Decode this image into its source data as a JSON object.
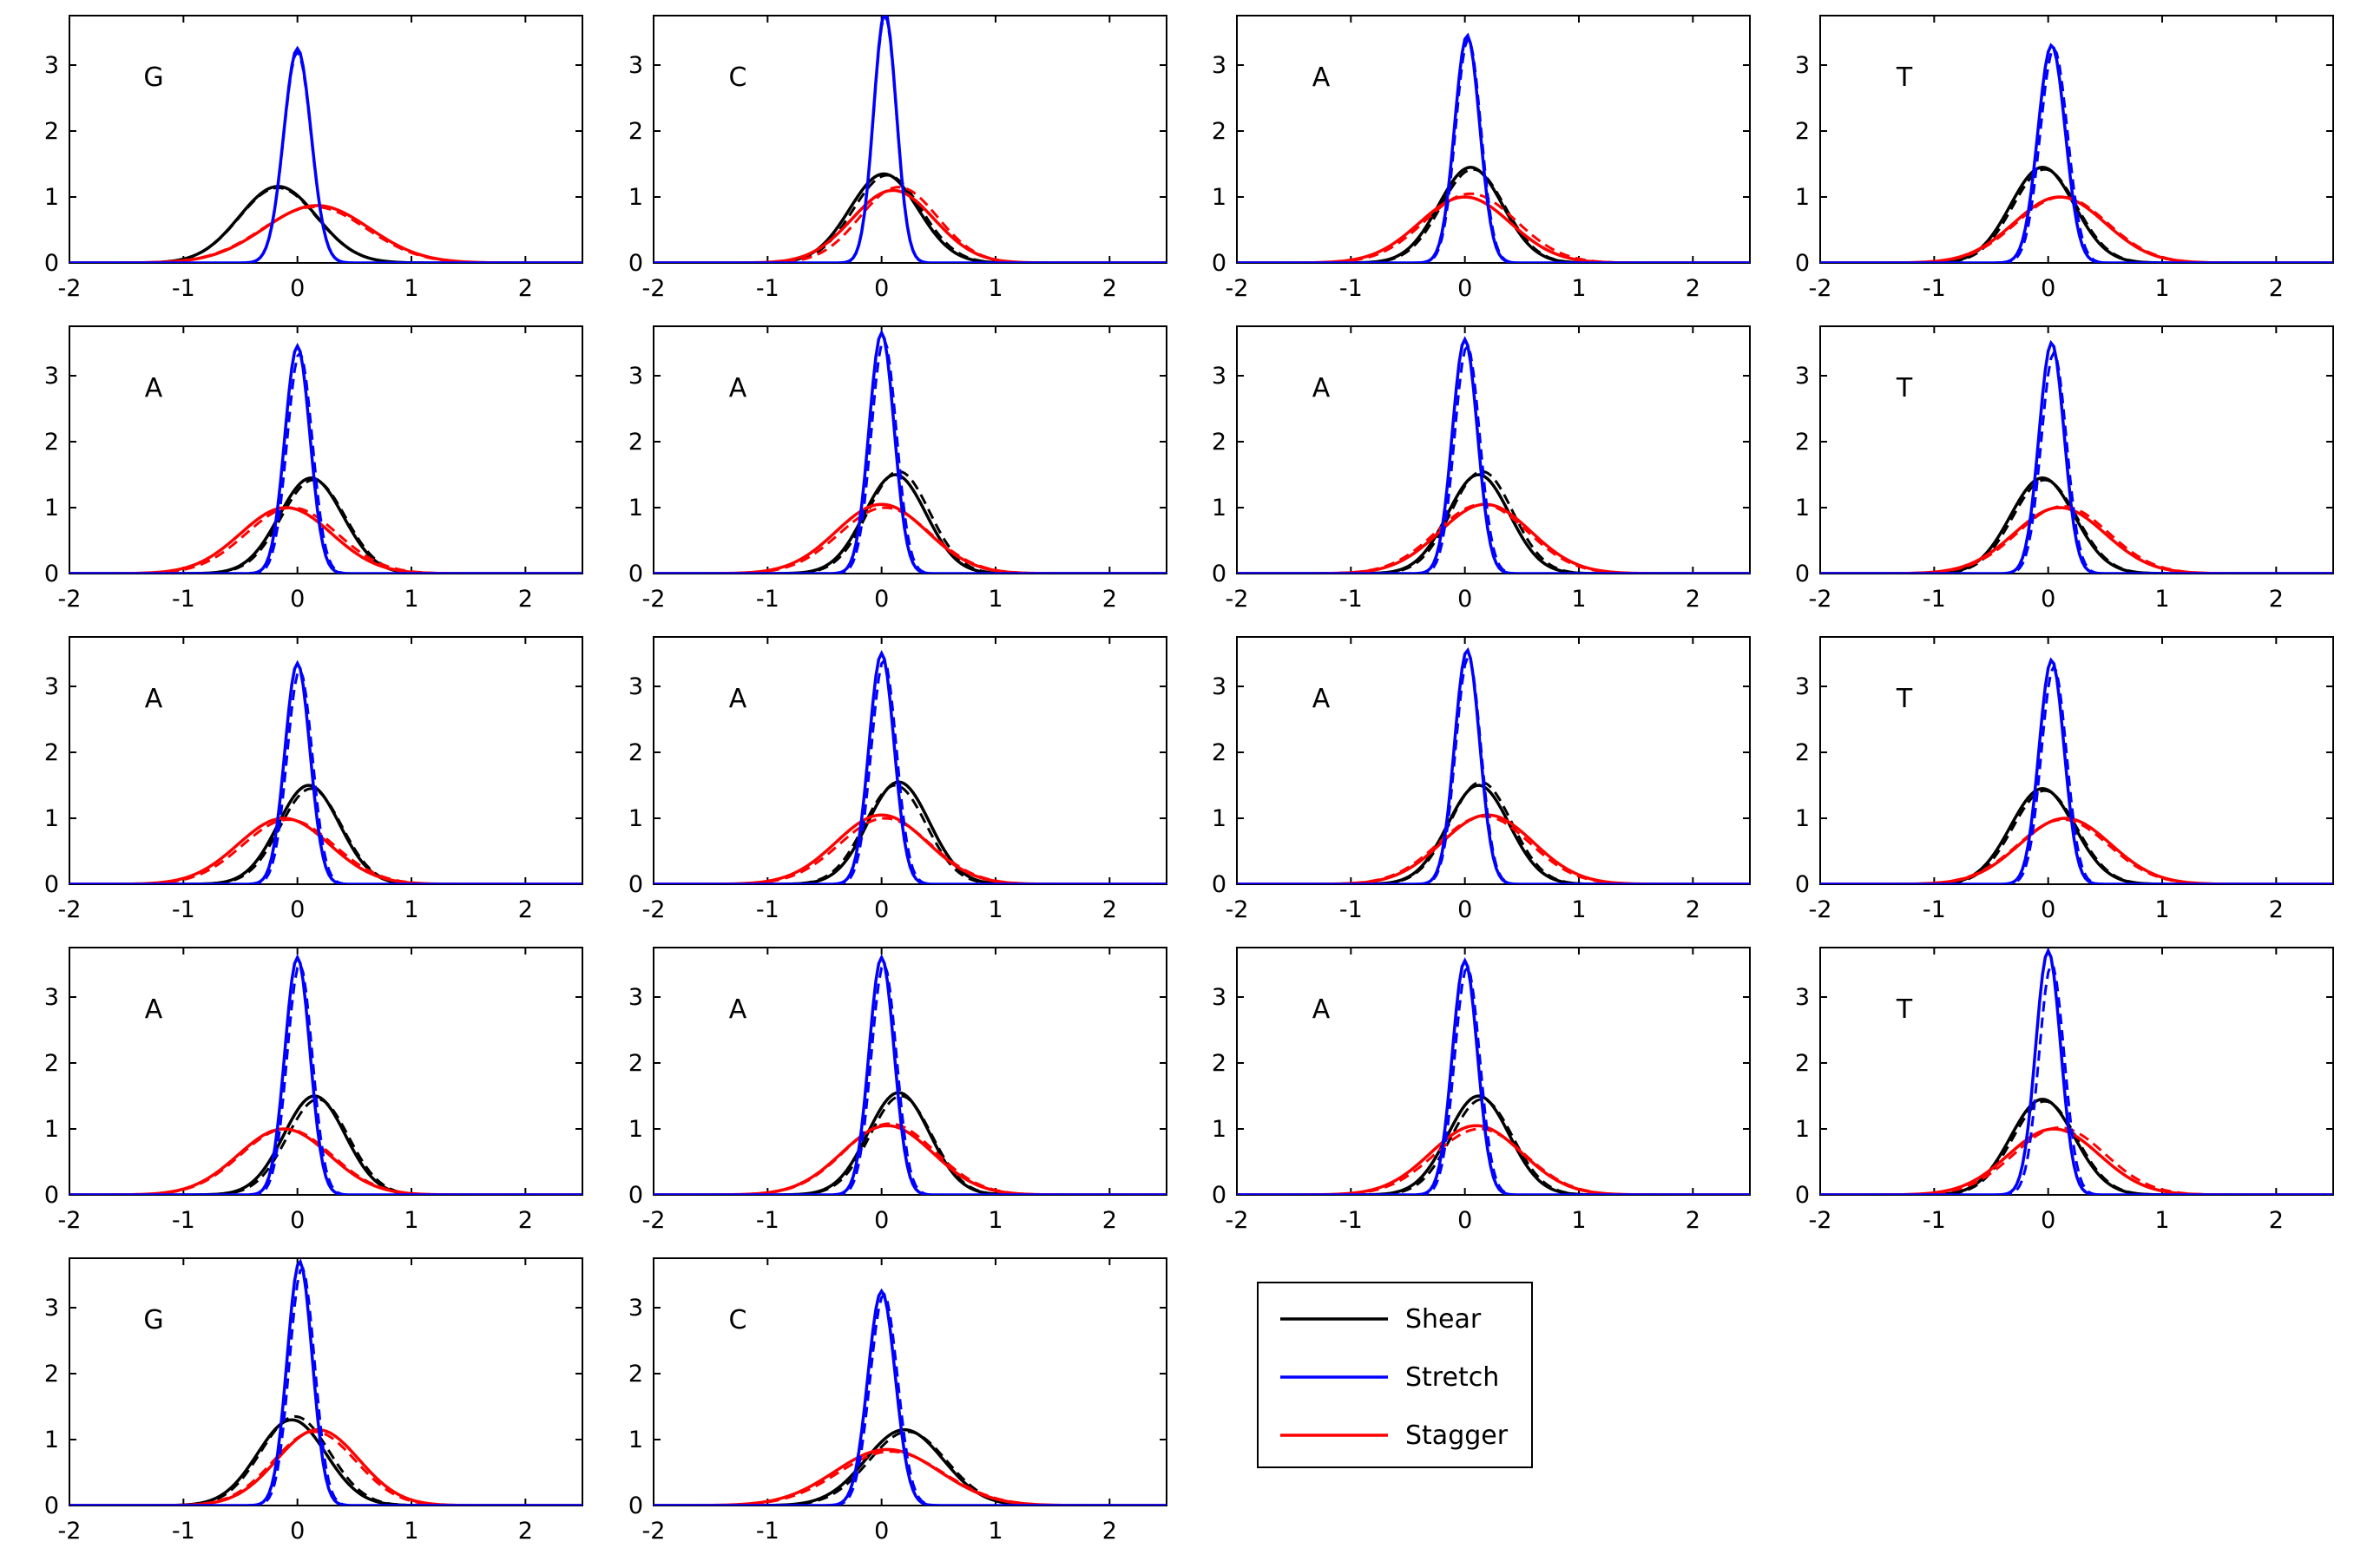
{
  "chart_data": {
    "type": "line",
    "layout": "small-multiples 5 rows x 4 columns",
    "x_axis": {
      "range": [
        -2,
        2.5
      ],
      "ticks": [
        -2,
        -1,
        0,
        1,
        2
      ],
      "tick_labels": [
        "-2",
        "-1",
        "0",
        "1",
        "2"
      ]
    },
    "y_axis": {
      "range": [
        0,
        3.75
      ],
      "ticks": [
        0,
        1,
        2,
        3
      ],
      "tick_labels": [
        "0",
        "1",
        "2",
        "3"
      ]
    },
    "title": "",
    "xlabel": "",
    "ylabel": "",
    "grid": false,
    "line_styles": [
      "solid",
      "dashed"
    ],
    "legend": {
      "placement": "panel 19 position (row 5, column 3)",
      "entries": [
        {
          "label": "Shear",
          "color": "#000000"
        },
        {
          "label": "Stretch",
          "color": "#0000ff"
        },
        {
          "label": "Stagger",
          "color": "#ff0000"
        }
      ]
    },
    "panels": [
      {
        "label": "G",
        "row": 1,
        "col": 1,
        "series": {
          "Shear": {
            "solid": {
              "mu": -0.17,
              "sigma": 0.34,
              "peak": 1.16
            },
            "dashed": {
              "mu": -0.17,
              "sigma": 0.34,
              "peak": 1.14
            }
          },
          "Stretch": {
            "solid": {
              "mu": 0.0,
              "sigma": 0.12,
              "peak": 3.25
            },
            "dashed": {
              "mu": 0.0,
              "sigma": 0.12,
              "peak": 3.2
            }
          },
          "Stagger": {
            "solid": {
              "mu": 0.17,
              "sigma": 0.46,
              "peak": 0.87
            },
            "dashed": {
              "mu": 0.15,
              "sigma": 0.46,
              "peak": 0.85
            }
          }
        }
      },
      {
        "label": "C",
        "row": 1,
        "col": 2,
        "series": {
          "Shear": {
            "solid": {
              "mu": 0.02,
              "sigma": 0.3,
              "peak": 1.35
            },
            "dashed": {
              "mu": 0.05,
              "sigma": 0.3,
              "peak": 1.33
            }
          },
          "Stretch": {
            "solid": {
              "mu": 0.03,
              "sigma": 0.1,
              "peak": 3.8
            },
            "dashed": {
              "mu": 0.03,
              "sigma": 0.1,
              "peak": 3.75
            }
          },
          "Stagger": {
            "solid": {
              "mu": 0.1,
              "sigma": 0.36,
              "peak": 1.1
            },
            "dashed": {
              "mu": 0.15,
              "sigma": 0.34,
              "peak": 1.15
            }
          }
        }
      },
      {
        "label": "A",
        "row": 1,
        "col": 3,
        "series": {
          "Shear": {
            "solid": {
              "mu": 0.05,
              "sigma": 0.28,
              "peak": 1.45
            },
            "dashed": {
              "mu": 0.07,
              "sigma": 0.28,
              "peak": 1.42
            }
          },
          "Stretch": {
            "solid": {
              "mu": 0.02,
              "sigma": 0.11,
              "peak": 3.45
            },
            "dashed": {
              "mu": 0.03,
              "sigma": 0.11,
              "peak": 3.4
            }
          },
          "Stagger": {
            "solid": {
              "mu": 0.0,
              "sigma": 0.4,
              "peak": 1.0
            },
            "dashed": {
              "mu": 0.05,
              "sigma": 0.4,
              "peak": 1.05
            }
          }
        }
      },
      {
        "label": "T",
        "row": 1,
        "col": 4,
        "series": {
          "Shear": {
            "solid": {
              "mu": -0.05,
              "sigma": 0.28,
              "peak": 1.45
            },
            "dashed": {
              "mu": -0.03,
              "sigma": 0.28,
              "peak": 1.42
            }
          },
          "Stretch": {
            "solid": {
              "mu": 0.03,
              "sigma": 0.12,
              "peak": 3.3
            },
            "dashed": {
              "mu": 0.05,
              "sigma": 0.12,
              "peak": 3.25
            }
          },
          "Stagger": {
            "solid": {
              "mu": 0.1,
              "sigma": 0.4,
              "peak": 1.0
            },
            "dashed": {
              "mu": 0.12,
              "sigma": 0.4,
              "peak": 1.0
            }
          }
        }
      },
      {
        "label": "A",
        "row": 2,
        "col": 1,
        "series": {
          "Shear": {
            "solid": {
              "mu": 0.12,
              "sigma": 0.28,
              "peak": 1.45
            },
            "dashed": {
              "mu": 0.14,
              "sigma": 0.28,
              "peak": 1.42
            }
          },
          "Stretch": {
            "solid": {
              "mu": 0.0,
              "sigma": 0.11,
              "peak": 3.45
            },
            "dashed": {
              "mu": 0.02,
              "sigma": 0.11,
              "peak": 3.35
            }
          },
          "Stagger": {
            "solid": {
              "mu": -0.1,
              "sigma": 0.4,
              "peak": 1.0
            },
            "dashed": {
              "mu": -0.05,
              "sigma": 0.4,
              "peak": 1.0
            }
          }
        }
      },
      {
        "label": "A",
        "row": 2,
        "col": 2,
        "series": {
          "Shear": {
            "solid": {
              "mu": 0.12,
              "sigma": 0.27,
              "peak": 1.5
            },
            "dashed": {
              "mu": 0.15,
              "sigma": 0.27,
              "peak": 1.55
            }
          },
          "Stretch": {
            "solid": {
              "mu": 0.0,
              "sigma": 0.11,
              "peak": 3.65
            },
            "dashed": {
              "mu": 0.02,
              "sigma": 0.11,
              "peak": 3.55
            }
          },
          "Stagger": {
            "solid": {
              "mu": 0.0,
              "sigma": 0.4,
              "peak": 1.05
            },
            "dashed": {
              "mu": 0.03,
              "sigma": 0.4,
              "peak": 1.0
            }
          }
        }
      },
      {
        "label": "A",
        "row": 2,
        "col": 3,
        "series": {
          "Shear": {
            "solid": {
              "mu": 0.12,
              "sigma": 0.27,
              "peak": 1.5
            },
            "dashed": {
              "mu": 0.15,
              "sigma": 0.27,
              "peak": 1.55
            }
          },
          "Stretch": {
            "solid": {
              "mu": 0.0,
              "sigma": 0.11,
              "peak": 3.55
            },
            "dashed": {
              "mu": 0.02,
              "sigma": 0.11,
              "peak": 3.45
            }
          },
          "Stagger": {
            "solid": {
              "mu": 0.18,
              "sigma": 0.4,
              "peak": 1.05
            },
            "dashed": {
              "mu": 0.15,
              "sigma": 0.4,
              "peak": 1.05
            }
          }
        }
      },
      {
        "label": "T",
        "row": 2,
        "col": 4,
        "series": {
          "Shear": {
            "solid": {
              "mu": -0.05,
              "sigma": 0.28,
              "peak": 1.45
            },
            "dashed": {
              "mu": -0.03,
              "sigma": 0.28,
              "peak": 1.42
            }
          },
          "Stretch": {
            "solid": {
              "mu": 0.03,
              "sigma": 0.11,
              "peak": 3.5
            },
            "dashed": {
              "mu": 0.05,
              "sigma": 0.11,
              "peak": 3.35
            }
          },
          "Stagger": {
            "solid": {
              "mu": 0.1,
              "sigma": 0.4,
              "peak": 1.0
            },
            "dashed": {
              "mu": 0.13,
              "sigma": 0.4,
              "peak": 1.02
            }
          }
        }
      },
      {
        "label": "A",
        "row": 3,
        "col": 1,
        "series": {
          "Shear": {
            "solid": {
              "mu": 0.1,
              "sigma": 0.27,
              "peak": 1.5
            },
            "dashed": {
              "mu": 0.12,
              "sigma": 0.27,
              "peak": 1.45
            }
          },
          "Stretch": {
            "solid": {
              "mu": 0.0,
              "sigma": 0.11,
              "peak": 3.35
            },
            "dashed": {
              "mu": 0.02,
              "sigma": 0.11,
              "peak": 3.25
            }
          },
          "Stagger": {
            "solid": {
              "mu": -0.12,
              "sigma": 0.4,
              "peak": 1.0
            },
            "dashed": {
              "mu": -0.08,
              "sigma": 0.4,
              "peak": 0.98
            }
          }
        }
      },
      {
        "label": "A",
        "row": 3,
        "col": 2,
        "series": {
          "Shear": {
            "solid": {
              "mu": 0.15,
              "sigma": 0.27,
              "peak": 1.55
            },
            "dashed": {
              "mu": 0.12,
              "sigma": 0.27,
              "peak": 1.5
            }
          },
          "Stretch": {
            "solid": {
              "mu": 0.0,
              "sigma": 0.11,
              "peak": 3.5
            },
            "dashed": {
              "mu": 0.02,
              "sigma": 0.11,
              "peak": 3.4
            }
          },
          "Stagger": {
            "solid": {
              "mu": 0.0,
              "sigma": 0.4,
              "peak": 1.05
            },
            "dashed": {
              "mu": 0.03,
              "sigma": 0.4,
              "peak": 1.0
            }
          }
        }
      },
      {
        "label": "A",
        "row": 3,
        "col": 3,
        "series": {
          "Shear": {
            "solid": {
              "mu": 0.12,
              "sigma": 0.27,
              "peak": 1.5
            },
            "dashed": {
              "mu": 0.14,
              "sigma": 0.27,
              "peak": 1.55
            }
          },
          "Stretch": {
            "solid": {
              "mu": 0.02,
              "sigma": 0.11,
              "peak": 3.55
            },
            "dashed": {
              "mu": 0.03,
              "sigma": 0.11,
              "peak": 3.45
            }
          },
          "Stagger": {
            "solid": {
              "mu": 0.2,
              "sigma": 0.4,
              "peak": 1.05
            },
            "dashed": {
              "mu": 0.17,
              "sigma": 0.4,
              "peak": 1.03
            }
          }
        }
      },
      {
        "label": "T",
        "row": 3,
        "col": 4,
        "series": {
          "Shear": {
            "solid": {
              "mu": -0.05,
              "sigma": 0.28,
              "peak": 1.45
            },
            "dashed": {
              "mu": -0.03,
              "sigma": 0.28,
              "peak": 1.42
            }
          },
          "Stretch": {
            "solid": {
              "mu": 0.03,
              "sigma": 0.11,
              "peak": 3.4
            },
            "dashed": {
              "mu": 0.05,
              "sigma": 0.11,
              "peak": 3.3
            }
          },
          "Stagger": {
            "solid": {
              "mu": 0.15,
              "sigma": 0.4,
              "peak": 1.0
            },
            "dashed": {
              "mu": 0.13,
              "sigma": 0.4,
              "peak": 0.98
            }
          }
        }
      },
      {
        "label": "A",
        "row": 4,
        "col": 1,
        "series": {
          "Shear": {
            "solid": {
              "mu": 0.15,
              "sigma": 0.27,
              "peak": 1.5
            },
            "dashed": {
              "mu": 0.18,
              "sigma": 0.27,
              "peak": 1.45
            }
          },
          "Stretch": {
            "solid": {
              "mu": 0.0,
              "sigma": 0.11,
              "peak": 3.6
            },
            "dashed": {
              "mu": 0.02,
              "sigma": 0.11,
              "peak": 3.5
            }
          },
          "Stagger": {
            "solid": {
              "mu": -0.12,
              "sigma": 0.4,
              "peak": 1.0
            },
            "dashed": {
              "mu": -0.1,
              "sigma": 0.4,
              "peak": 1.0
            }
          }
        }
      },
      {
        "label": "A",
        "row": 4,
        "col": 2,
        "series": {
          "Shear": {
            "solid": {
              "mu": 0.15,
              "sigma": 0.27,
              "peak": 1.55
            },
            "dashed": {
              "mu": 0.17,
              "sigma": 0.27,
              "peak": 1.5
            }
          },
          "Stretch": {
            "solid": {
              "mu": 0.0,
              "sigma": 0.11,
              "peak": 3.6
            },
            "dashed": {
              "mu": 0.02,
              "sigma": 0.11,
              "peak": 3.5
            }
          },
          "Stagger": {
            "solid": {
              "mu": 0.05,
              "sigma": 0.4,
              "peak": 1.05
            },
            "dashed": {
              "mu": 0.07,
              "sigma": 0.4,
              "peak": 1.08
            }
          }
        }
      },
      {
        "label": "A",
        "row": 4,
        "col": 3,
        "series": {
          "Shear": {
            "solid": {
              "mu": 0.12,
              "sigma": 0.27,
              "peak": 1.5
            },
            "dashed": {
              "mu": 0.15,
              "sigma": 0.27,
              "peak": 1.45
            }
          },
          "Stretch": {
            "solid": {
              "mu": 0.0,
              "sigma": 0.11,
              "peak": 3.55
            },
            "dashed": {
              "mu": 0.02,
              "sigma": 0.11,
              "peak": 3.45
            }
          },
          "Stagger": {
            "solid": {
              "mu": 0.1,
              "sigma": 0.4,
              "peak": 1.05
            },
            "dashed": {
              "mu": 0.13,
              "sigma": 0.4,
              "peak": 1.0
            }
          }
        }
      },
      {
        "label": "T",
        "row": 4,
        "col": 4,
        "series": {
          "Shear": {
            "solid": {
              "mu": -0.05,
              "sigma": 0.28,
              "peak": 1.45
            },
            "dashed": {
              "mu": -0.03,
              "sigma": 0.28,
              "peak": 1.42
            }
          },
          "Stretch": {
            "solid": {
              "mu": 0.0,
              "sigma": 0.11,
              "peak": 3.7
            },
            "dashed": {
              "mu": 0.03,
              "sigma": 0.11,
              "peak": 3.5
            }
          },
          "Stagger": {
            "solid": {
              "mu": 0.05,
              "sigma": 0.4,
              "peak": 1.0
            },
            "dashed": {
              "mu": 0.1,
              "sigma": 0.4,
              "peak": 1.02
            }
          }
        }
      },
      {
        "label": "G",
        "row": 5,
        "col": 1,
        "series": {
          "Shear": {
            "solid": {
              "mu": -0.05,
              "sigma": 0.3,
              "peak": 1.3
            },
            "dashed": {
              "mu": -0.02,
              "sigma": 0.3,
              "peak": 1.35
            }
          },
          "Stretch": {
            "solid": {
              "mu": 0.02,
              "sigma": 0.11,
              "peak": 3.7
            },
            "dashed": {
              "mu": 0.04,
              "sigma": 0.11,
              "peak": 3.6
            }
          },
          "Stagger": {
            "solid": {
              "mu": 0.18,
              "sigma": 0.36,
              "peak": 1.15
            },
            "dashed": {
              "mu": 0.15,
              "sigma": 0.36,
              "peak": 1.12
            }
          }
        }
      },
      {
        "label": "C",
        "row": 5,
        "col": 2,
        "series": {
          "Shear": {
            "solid": {
              "mu": 0.2,
              "sigma": 0.34,
              "peak": 1.15
            },
            "dashed": {
              "mu": 0.23,
              "sigma": 0.34,
              "peak": 1.12
            }
          },
          "Stretch": {
            "solid": {
              "mu": 0.0,
              "sigma": 0.12,
              "peak": 3.25
            },
            "dashed": {
              "mu": 0.02,
              "sigma": 0.12,
              "peak": 3.2
            }
          },
          "Stagger": {
            "solid": {
              "mu": 0.05,
              "sigma": 0.46,
              "peak": 0.85
            },
            "dashed": {
              "mu": 0.08,
              "sigma": 0.46,
              "peak": 0.82
            }
          }
        }
      }
    ]
  }
}
